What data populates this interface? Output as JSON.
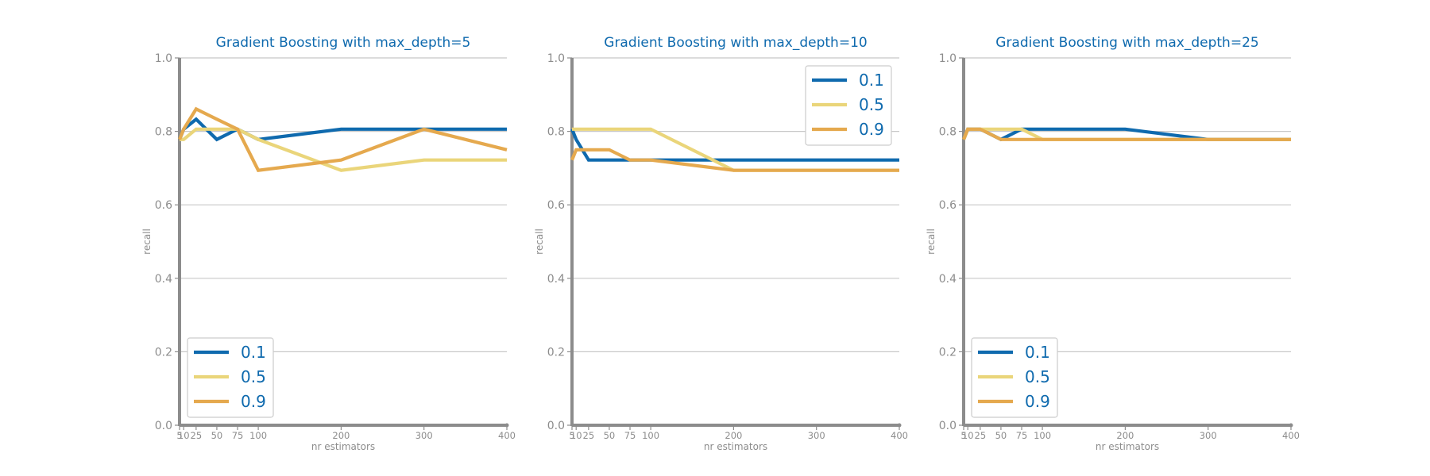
{
  "colors": {
    "series": [
      "#0f6aae",
      "#ead57a",
      "#e5a94e"
    ],
    "title": "#0f6aae",
    "axis": "#8c8c8c",
    "grid": "#c8c8c8",
    "legend_text": "#0f6aae"
  },
  "chart_data": [
    {
      "type": "line",
      "title": "Gradient Boosting with max_depth=5",
      "xlabel": "nr estimators",
      "ylabel": "recall",
      "xlim": [
        5,
        400
      ],
      "ylim": [
        0.0,
        1.0
      ],
      "xticks": [
        5,
        10,
        25,
        50,
        75,
        100,
        200,
        300,
        400
      ],
      "yticks": [
        0.0,
        0.2,
        0.4,
        0.6,
        0.8,
        1.0
      ],
      "grid": "horizontal",
      "legend_position": "lower-left",
      "x": [
        5,
        10,
        25,
        50,
        75,
        100,
        200,
        300,
        400
      ],
      "series": [
        {
          "name": "0.1",
          "values": [
            0.778,
            0.806,
            0.833,
            0.778,
            0.806,
            0.778,
            0.806,
            0.806,
            0.806
          ]
        },
        {
          "name": "0.5",
          "values": [
            0.778,
            0.778,
            0.806,
            0.806,
            0.806,
            0.778,
            0.694,
            0.722,
            0.722
          ]
        },
        {
          "name": "0.9",
          "values": [
            0.778,
            0.806,
            0.861,
            0.833,
            0.806,
            0.694,
            0.722,
            0.806,
            0.75
          ]
        }
      ]
    },
    {
      "type": "line",
      "title": "Gradient Boosting with max_depth=10",
      "xlabel": "nr estimators",
      "ylabel": "recall",
      "xlim": [
        5,
        400
      ],
      "ylim": [
        0.0,
        1.0
      ],
      "xticks": [
        5,
        10,
        25,
        50,
        75,
        100,
        200,
        300,
        400
      ],
      "yticks": [
        0.0,
        0.2,
        0.4,
        0.6,
        0.8,
        1.0
      ],
      "grid": "horizontal",
      "legend_position": "top-right",
      "x": [
        5,
        10,
        25,
        50,
        75,
        100,
        200,
        300,
        400
      ],
      "series": [
        {
          "name": "0.1",
          "values": [
            0.806,
            0.778,
            0.722,
            0.722,
            0.722,
            0.722,
            0.722,
            0.722,
            0.722
          ]
        },
        {
          "name": "0.5",
          "values": [
            0.806,
            0.806,
            0.806,
            0.806,
            0.806,
            0.806,
            0.694,
            0.694,
            0.694
          ]
        },
        {
          "name": "0.9",
          "values": [
            0.722,
            0.75,
            0.75,
            0.75,
            0.722,
            0.722,
            0.694,
            0.694,
            0.694
          ]
        }
      ]
    },
    {
      "type": "line",
      "title": "Gradient Boosting with max_depth=25",
      "xlabel": "nr estimators",
      "ylabel": "recall",
      "xlim": [
        5,
        400
      ],
      "ylim": [
        0.0,
        1.0
      ],
      "xticks": [
        5,
        10,
        25,
        50,
        75,
        100,
        200,
        300,
        400
      ],
      "yticks": [
        0.0,
        0.2,
        0.4,
        0.6,
        0.8,
        1.0
      ],
      "grid": "horizontal",
      "legend_position": "lower-left",
      "x": [
        5,
        10,
        25,
        50,
        75,
        100,
        200,
        300,
        400
      ],
      "series": [
        {
          "name": "0.1",
          "values": [
            0.778,
            0.806,
            0.806,
            0.778,
            0.806,
            0.806,
            0.806,
            0.778,
            0.778
          ]
        },
        {
          "name": "0.5",
          "values": [
            0.778,
            0.806,
            0.806,
            0.806,
            0.806,
            0.778,
            0.778,
            0.778,
            0.778
          ]
        },
        {
          "name": "0.9",
          "values": [
            0.778,
            0.806,
            0.806,
            0.778,
            0.778,
            0.778,
            0.778,
            0.778,
            0.778
          ]
        }
      ]
    }
  ]
}
